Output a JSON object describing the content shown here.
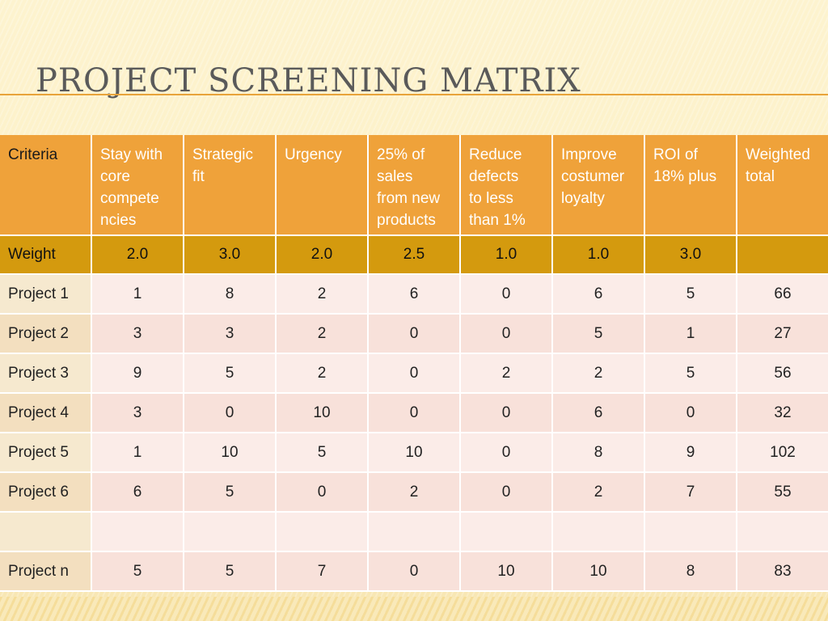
{
  "title": "Project screening matrix",
  "header": {
    "corner_label": "Criteria",
    "columns": [
      [
        "Stay with",
        "core",
        "compete",
        "ncies"
      ],
      [
        "Strategic",
        "fit"
      ],
      [
        "Urgency"
      ],
      [
        "25% of",
        "sales",
        "from new",
        "products"
      ],
      [
        "Reduce",
        "defects",
        "to less",
        "than 1%"
      ],
      [
        "Improve",
        "costumer",
        "loyalty"
      ],
      [
        "ROI of",
        "18% plus"
      ],
      [
        "Weighted",
        "total"
      ]
    ]
  },
  "weight_row": {
    "label": "Weight",
    "values": [
      "2.0",
      "3.0",
      "2.0",
      "2.5",
      "1.0",
      "1.0",
      "3.0",
      ""
    ]
  },
  "rows": [
    {
      "label": "Project 1",
      "values": [
        "1",
        "8",
        "2",
        "6",
        "0",
        "6",
        "5",
        "66"
      ]
    },
    {
      "label": "Project 2",
      "values": [
        "3",
        "3",
        "2",
        "0",
        "0",
        "5",
        "1",
        "27"
      ]
    },
    {
      "label": "Project 3",
      "values": [
        "9",
        "5",
        "2",
        "0",
        "2",
        "2",
        "5",
        "56"
      ]
    },
    {
      "label": "Project 4",
      "values": [
        "3",
        "0",
        "10",
        "0",
        "0",
        "6",
        "0",
        "32"
      ]
    },
    {
      "label": "Project 5",
      "values": [
        "1",
        "10",
        "5",
        "10",
        "0",
        "8",
        "9",
        "102"
      ]
    },
    {
      "label": "Project 6",
      "values": [
        "6",
        "5",
        "0",
        "2",
        "0",
        "2",
        "7",
        "55"
      ]
    },
    {
      "label": "",
      "values": [
        "",
        "",
        "",
        "",
        "",
        "",
        "",
        ""
      ]
    },
    {
      "label": "Project n",
      "values": [
        "5",
        "5",
        "7",
        "0",
        "10",
        "10",
        "8",
        "83"
      ]
    }
  ],
  "colors": {
    "header": "#efa23a",
    "weight_row": "#d49a0e",
    "row_light": "#fbece8",
    "row_dark": "#f8e1da",
    "title_text": "#5a5a5a",
    "title_rule": "#e8a33a"
  }
}
